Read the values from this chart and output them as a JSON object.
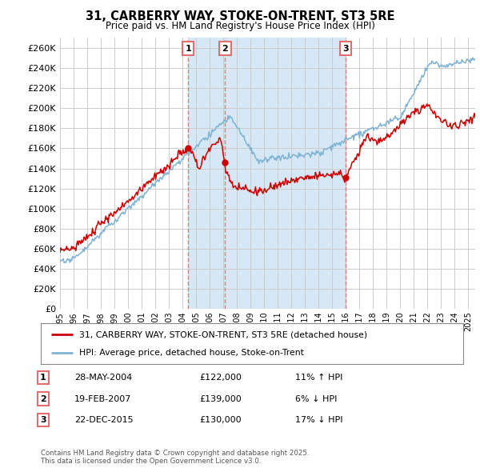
{
  "title": "31, CARBERRY WAY, STOKE-ON-TRENT, ST3 5RE",
  "subtitle": "Price paid vs. HM Land Registry's House Price Index (HPI)",
  "ylim": [
    0,
    270000
  ],
  "yticks": [
    0,
    20000,
    40000,
    60000,
    80000,
    100000,
    120000,
    140000,
    160000,
    180000,
    200000,
    220000,
    240000,
    260000
  ],
  "hpi_color": "#7FB3D3",
  "hpi_shade_color": "#D6E8F5",
  "price_color": "#CC0000",
  "vline_color": "#E07070",
  "background_color": "#ffffff",
  "grid_color": "#cccccc",
  "transactions": [
    {
      "num": 1,
      "date_str": "28-MAY-2004",
      "price": 122000,
      "pct": "11%",
      "dir": "↑",
      "x": 2004.41
    },
    {
      "num": 2,
      "date_str": "19-FEB-2007",
      "price": 139000,
      "pct": "6%",
      "dir": "↓",
      "x": 2007.13
    },
    {
      "num": 3,
      "date_str": "22-DEC-2015",
      "price": 130000,
      "pct": "17%",
      "dir": "↓",
      "x": 2015.98
    }
  ],
  "legend_label_price": "31, CARBERRY WAY, STOKE-ON-TRENT, ST3 5RE (detached house)",
  "legend_label_hpi": "HPI: Average price, detached house, Stoke-on-Trent",
  "footnote": "Contains HM Land Registry data © Crown copyright and database right 2025.\nThis data is licensed under the Open Government Licence v3.0."
}
